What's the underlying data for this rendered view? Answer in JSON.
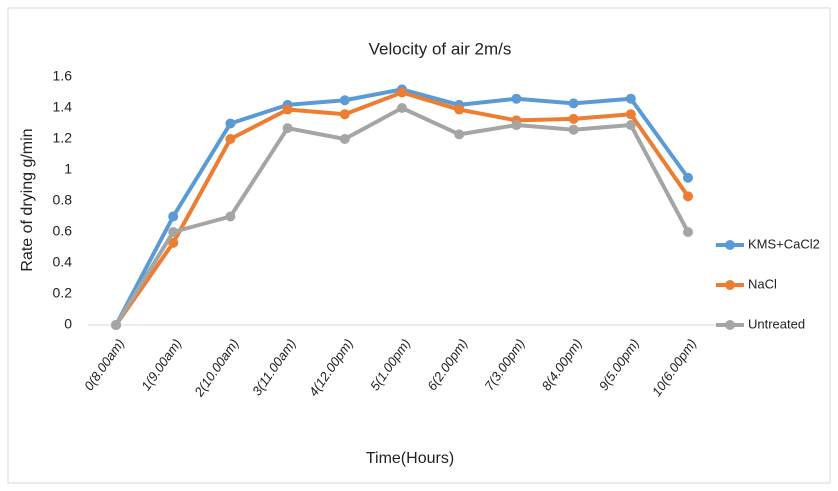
{
  "chart_data": {
    "type": "line",
    "title": "Velocity of air 2m/s",
    "xlabel": "Time(Hours)",
    "ylabel": "Rate of drying  g/min",
    "categories": [
      "0(8.00am)",
      "1(9.00am)",
      "2(10.00am)",
      "3(11.00am)",
      "4(12.00pm)",
      "5(1.00pm)",
      "6(2.00pm)",
      "7(3.00pm)",
      "8(4.00pm)",
      "9(5.00pm)",
      "10(6.00pm)"
    ],
    "series": [
      {
        "name": "KMS+CaCl2",
        "color": "#5b9bd5",
        "values": [
          0,
          0.7,
          1.3,
          1.42,
          1.45,
          1.52,
          1.42,
          1.46,
          1.43,
          1.46,
          0.95
        ]
      },
      {
        "name": "NaCl",
        "color": "#ed7d31",
        "values": [
          0,
          0.53,
          1.2,
          1.39,
          1.36,
          1.5,
          1.39,
          1.32,
          1.33,
          1.36,
          0.83
        ]
      },
      {
        "name": "Untreated",
        "color": "#a5a5a5",
        "values": [
          0,
          0.6,
          0.7,
          1.27,
          1.2,
          1.4,
          1.23,
          1.29,
          1.26,
          1.29,
          0.6
        ]
      }
    ],
    "ylim": [
      0,
      1.6
    ],
    "yticks": [
      0,
      0.2,
      0.4,
      0.6,
      0.8,
      1,
      1.2,
      1.4,
      1.6
    ],
    "grid": false,
    "legend": "right"
  }
}
